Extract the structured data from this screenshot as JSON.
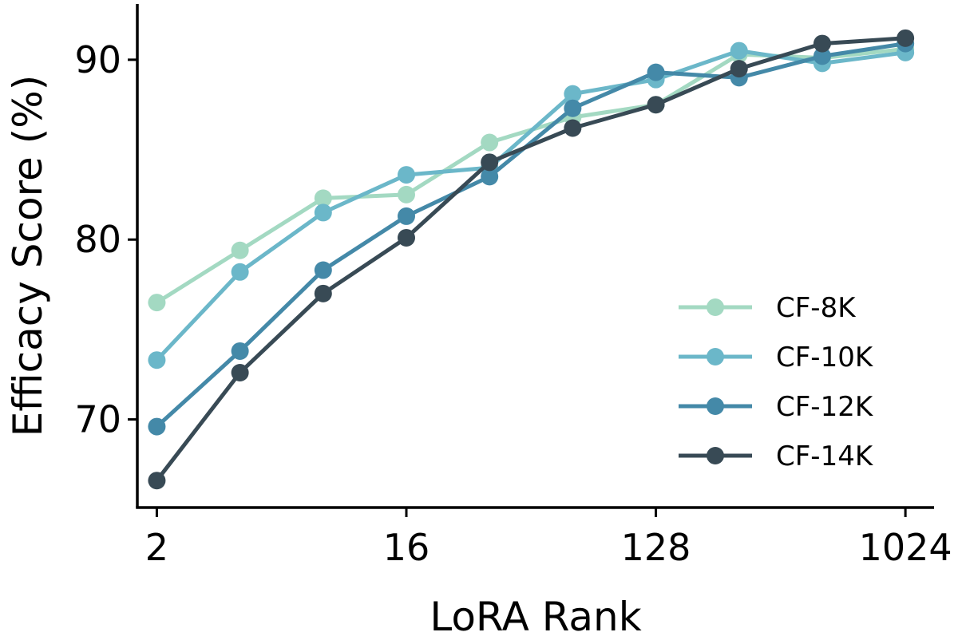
{
  "chart_data": {
    "type": "line",
    "title": "",
    "xlabel": "LoRA Rank",
    "ylabel": "Efficacy Score (%)",
    "x_scale": "log2",
    "x": [
      2,
      4,
      8,
      16,
      32,
      64,
      128,
      256,
      512,
      1024
    ],
    "x_tick_labels": [
      "2",
      "16",
      "128",
      "1024"
    ],
    "x_tick_values": [
      2,
      16,
      128,
      1024
    ],
    "y_ticks": [
      70,
      80,
      90
    ],
    "ylim": [
      65.1,
      93.1
    ],
    "xlim": [
      1.7,
      1300
    ],
    "grid": false,
    "legend_position": "lower-right",
    "series": [
      {
        "name": "CF-8K",
        "color": "#a3d9c2",
        "values": [
          76.5,
          79.4,
          82.3,
          82.5,
          85.4,
          86.8,
          87.5,
          90.3,
          90.1,
          90.6
        ]
      },
      {
        "name": "CF-10K",
        "color": "#6bb7c9",
        "values": [
          73.3,
          78.2,
          81.5,
          83.6,
          84.0,
          88.1,
          88.9,
          90.5,
          89.8,
          90.4
        ]
      },
      {
        "name": "CF-12K",
        "color": "#4489a8",
        "values": [
          69.6,
          73.8,
          78.3,
          81.3,
          83.5,
          87.3,
          89.3,
          89.0,
          90.2,
          90.9
        ]
      },
      {
        "name": "CF-14K",
        "color": "#384a55",
        "values": [
          66.6,
          72.6,
          77.0,
          80.1,
          84.3,
          86.2,
          87.5,
          89.5,
          90.9,
          91.2
        ]
      }
    ]
  }
}
